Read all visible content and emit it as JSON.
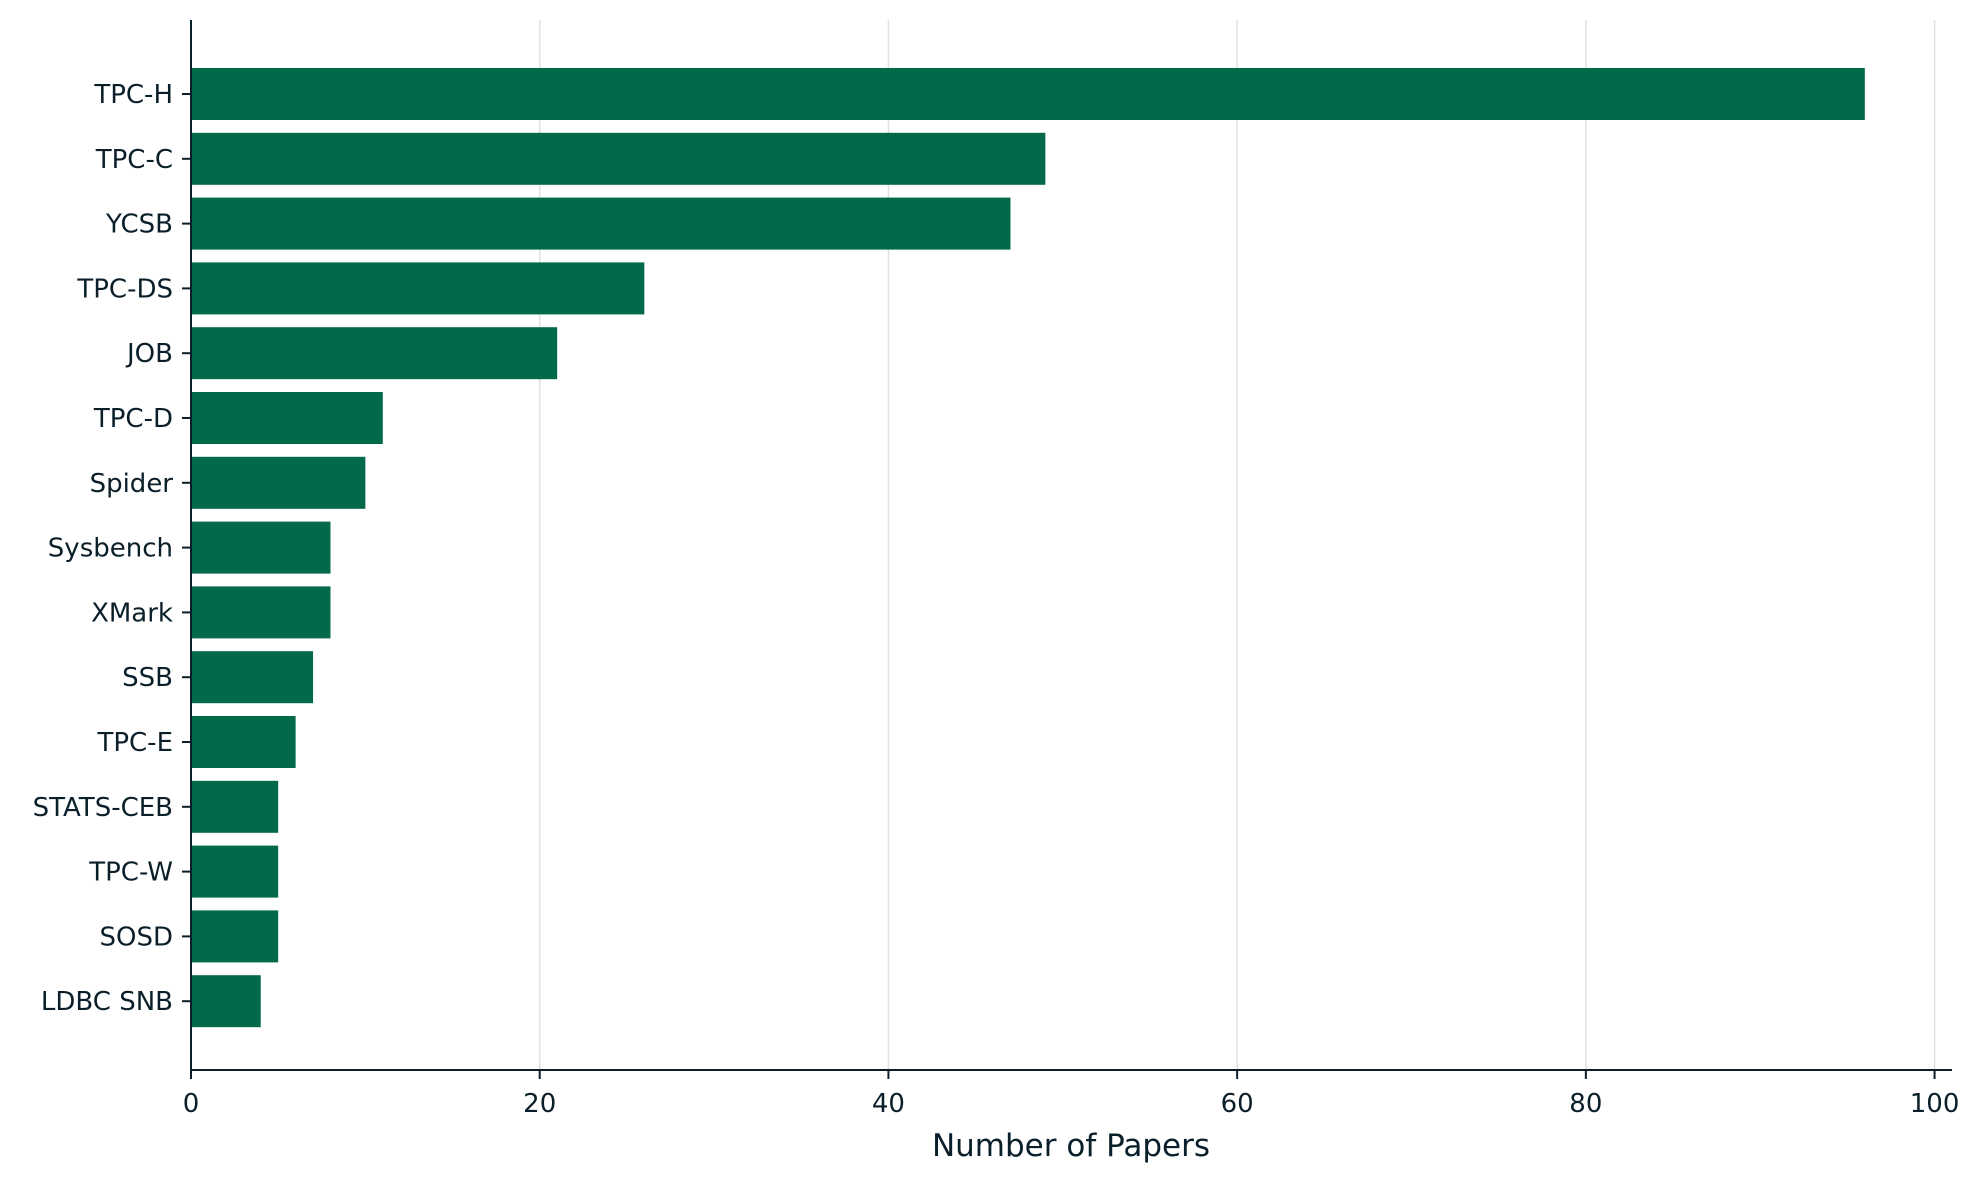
{
  "chart_data": {
    "type": "bar",
    "orientation": "horizontal",
    "categories": [
      "TPC-H",
      "TPC-C",
      "YCSB",
      "TPC-DS",
      "JOB",
      "TPC-D",
      "Spider",
      "Sysbench",
      "XMark",
      "SSB",
      "TPC-E",
      "STATS-CEB",
      "TPC-W",
      "SOSD",
      "LDBC SNB"
    ],
    "values": [
      96,
      49,
      47,
      26,
      21,
      11,
      10,
      8,
      8,
      7,
      6,
      5,
      5,
      5,
      4
    ],
    "title": "",
    "xlabel": "Number of Papers",
    "ylabel": "",
    "xlim": [
      0,
      101
    ],
    "xticks": [
      "0",
      "20",
      "40",
      "60",
      "80",
      "100"
    ],
    "grid": "vertical",
    "colors": {
      "bar": "#02694b",
      "grid": "#e0e0e0",
      "axis": "#0b1f2a",
      "text": "#0b1f2a"
    }
  }
}
